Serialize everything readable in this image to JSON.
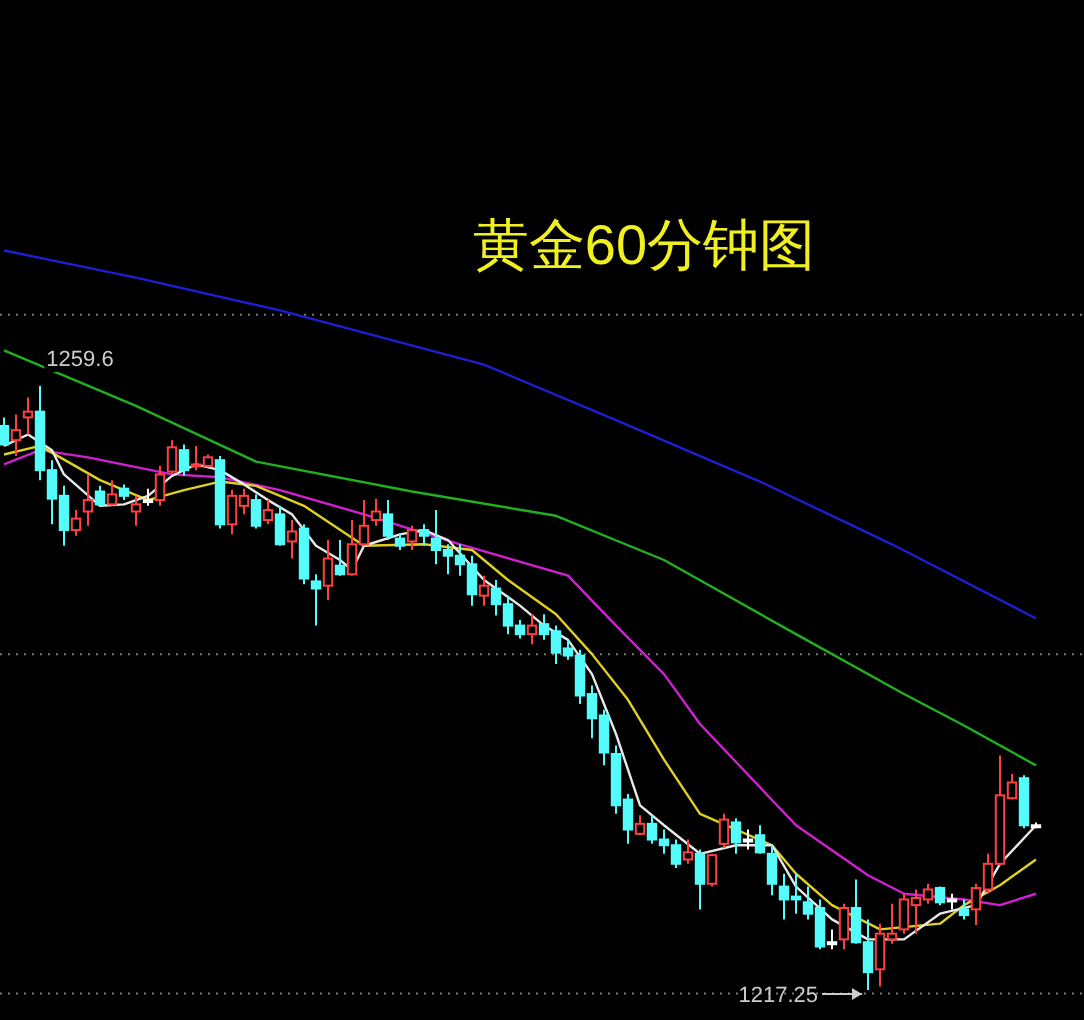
{
  "chart_data": {
    "type": "candlestick",
    "title": "黄金60分钟图",
    "categories": [
      null,
      null,
      null,
      null,
      null,
      null,
      null,
      null,
      null,
      null,
      null,
      null,
      null,
      null,
      null,
      null,
      null,
      null,
      null,
      null,
      null,
      null,
      null,
      null,
      null,
      null,
      null,
      null,
      null,
      null,
      null,
      null,
      null,
      null,
      null,
      null,
      null,
      null,
      null,
      null,
      null,
      null,
      null,
      null,
      null,
      null,
      null,
      null,
      null,
      null,
      null,
      null,
      null,
      null,
      null,
      null,
      null,
      null,
      null,
      null,
      null,
      null,
      null,
      null,
      null,
      null,
      null,
      null,
      null,
      null,
      null,
      null,
      null,
      null,
      null,
      null,
      null,
      null,
      null,
      null,
      null,
      null,
      null,
      null,
      null,
      null,
      null
    ],
    "ohlc": [
      [
        1256.8,
        1257.4,
        1255.4,
        1255.5
      ],
      [
        1255.8,
        1257.6,
        1254.7,
        1256.5
      ],
      [
        1257.4,
        1258.8,
        1256.2,
        1257.8
      ],
      [
        1257.8,
        1259.6,
        1253.0,
        1253.7
      ],
      [
        1253.7,
        1254.4,
        1249.9,
        1251.7
      ],
      [
        1251.9,
        1252.6,
        1248.4,
        1249.5
      ],
      [
        1249.5,
        1250.9,
        1249.1,
        1250.3
      ],
      [
        1250.8,
        1253.4,
        1249.8,
        1251.6
      ],
      [
        1252.2,
        1252.6,
        1251.2,
        1251.3
      ],
      [
        1251.3,
        1253.0,
        1251.2,
        1252.0
      ],
      [
        1252.4,
        1252.7,
        1251.6,
        1251.9
      ],
      [
        1250.8,
        1251.9,
        1249.8,
        1251.3
      ],
      [
        1251.6,
        1252.4,
        1251.2,
        1251.6
      ],
      [
        1251.6,
        1254.0,
        1251.2,
        1253.4
      ],
      [
        1253.6,
        1255.8,
        1253.4,
        1255.3
      ],
      [
        1255.1,
        1255.5,
        1253.3,
        1253.7
      ],
      [
        1254.0,
        1255.4,
        1253.7,
        1254.1
      ],
      [
        1254.0,
        1254.8,
        1253.9,
        1254.6
      ],
      [
        1254.4,
        1254.7,
        1249.6,
        1249.9
      ],
      [
        1249.9,
        1252.3,
        1249.2,
        1251.9
      ],
      [
        1251.2,
        1252.4,
        1250.6,
        1251.9
      ],
      [
        1251.6,
        1252.0,
        1249.6,
        1249.8
      ],
      [
        1250.2,
        1251.6,
        1249.9,
        1250.9
      ],
      [
        1250.6,
        1251.2,
        1248.4,
        1248.5
      ],
      [
        1248.7,
        1250.2,
        1247.5,
        1249.4
      ],
      [
        1249.6,
        1249.9,
        1245.7,
        1246.1
      ],
      [
        1245.9,
        1246.4,
        1242.8,
        1245.4
      ],
      [
        1245.6,
        1248.8,
        1244.6,
        1247.5
      ],
      [
        1247.0,
        1248.8,
        1246.3,
        1246.4
      ],
      [
        1246.4,
        1250.2,
        1246.3,
        1248.5
      ],
      [
        1248.5,
        1251.6,
        1248.4,
        1249.8
      ],
      [
        1250.2,
        1251.7,
        1249.8,
        1250.8
      ],
      [
        1250.6,
        1251.6,
        1248.8,
        1249.1
      ],
      [
        1248.9,
        1249.2,
        1248.1,
        1248.4
      ],
      [
        1248.7,
        1249.8,
        1248.1,
        1249.5
      ],
      [
        1249.5,
        1249.9,
        1248.4,
        1249.1
      ],
      [
        1248.9,
        1250.9,
        1247.1,
        1248.1
      ],
      [
        1248.1,
        1248.5,
        1246.4,
        1247.7
      ],
      [
        1247.7,
        1248.5,
        1246.3,
        1247.1
      ],
      [
        1247.1,
        1247.7,
        1244.2,
        1245.0
      ],
      [
        1244.9,
        1246.3,
        1244.2,
        1245.6
      ],
      [
        1245.4,
        1246.0,
        1243.5,
        1244.3
      ],
      [
        1244.3,
        1244.9,
        1242.2,
        1242.8
      ],
      [
        1242.8,
        1243.2,
        1241.9,
        1242.2
      ],
      [
        1242.2,
        1243.6,
        1241.5,
        1242.8
      ],
      [
        1242.9,
        1243.6,
        1241.8,
        1242.2
      ],
      [
        1242.4,
        1242.8,
        1240.1,
        1240.9
      ],
      [
        1241.2,
        1241.8,
        1240.4,
        1240.7
      ],
      [
        1240.7,
        1241.1,
        1237.3,
        1237.9
      ],
      [
        1238.0,
        1238.6,
        1234.9,
        1236.3
      ],
      [
        1236.5,
        1236.9,
        1233.0,
        1233.9
      ],
      [
        1233.8,
        1234.4,
        1229.6,
        1230.2
      ],
      [
        1230.6,
        1231.0,
        1227.5,
        1228.5
      ],
      [
        1228.2,
        1229.5,
        1228.1,
        1228.9
      ],
      [
        1228.9,
        1229.5,
        1227.5,
        1227.8
      ],
      [
        1227.8,
        1228.5,
        1226.8,
        1227.4
      ],
      [
        1227.4,
        1227.8,
        1225.8,
        1226.1
      ],
      [
        1226.4,
        1227.8,
        1226.1,
        1226.9
      ],
      [
        1226.8,
        1227.1,
        1222.9,
        1224.7
      ],
      [
        1224.7,
        1226.8,
        1224.5,
        1226.7
      ],
      [
        1227.5,
        1229.6,
        1227.2,
        1229.2
      ],
      [
        1229.0,
        1229.3,
        1226.8,
        1227.6
      ],
      [
        1227.8,
        1228.5,
        1227.1,
        1227.8
      ],
      [
        1228.1,
        1228.8,
        1226.8,
        1226.9
      ],
      [
        1226.8,
        1227.4,
        1223.9,
        1224.7
      ],
      [
        1224.5,
        1225.4,
        1222.2,
        1223.6
      ],
      [
        1223.8,
        1225.4,
        1222.6,
        1223.6
      ],
      [
        1223.4,
        1224.5,
        1222.2,
        1222.6
      ],
      [
        1223.0,
        1223.6,
        1220.1,
        1220.3
      ],
      [
        1220.6,
        1221.5,
        1220.1,
        1220.6
      ],
      [
        1220.8,
        1223.3,
        1220.1,
        1223.0
      ],
      [
        1223.0,
        1225.0,
        1220.5,
        1220.6
      ],
      [
        1220.6,
        1222.2,
        1217.25,
        1218.5
      ],
      [
        1218.7,
        1221.9,
        1217.5,
        1221.2
      ],
      [
        1220.8,
        1223.3,
        1220.5,
        1221.2
      ],
      [
        1221.5,
        1224.0,
        1221.2,
        1223.6
      ],
      [
        1223.2,
        1224.3,
        1221.2,
        1223.7
      ],
      [
        1223.6,
        1224.7,
        1223.3,
        1224.3
      ],
      [
        1224.4,
        1224.5,
        1223.2,
        1223.4
      ],
      [
        1223.6,
        1224.0,
        1222.9,
        1223.6
      ],
      [
        1222.9,
        1223.6,
        1222.2,
        1222.5
      ],
      [
        1222.9,
        1224.7,
        1221.8,
        1224.4
      ],
      [
        1224.3,
        1226.8,
        1224.0,
        1226.1
      ],
      [
        1226.1,
        1233.7,
        1226.0,
        1230.9
      ],
      [
        1230.7,
        1232.4,
        1230.6,
        1231.8
      ],
      [
        1232.1,
        1232.3,
        1228.6,
        1228.8
      ],
      [
        1228.8,
        1229.0,
        1228.6,
        1228.8
      ]
    ],
    "series": [
      {
        "type": "line",
        "color": "#1e1ed2",
        "values": [
          1269.1,
          null,
          null,
          null,
          null,
          null,
          null,
          null,
          null,
          null,
          null,
          1267.2,
          null,
          null,
          null,
          null,
          null,
          null,
          null,
          null,
          null,
          null,
          null,
          1264.9,
          null,
          null,
          null,
          null,
          null,
          null,
          null,
          null,
          null,
          null,
          null,
          null,
          null,
          null,
          null,
          null,
          1261.1,
          null,
          null,
          null,
          null,
          null,
          null,
          null,
          null,
          null,
          null,
          1257.2,
          null,
          null,
          null,
          null,
          null,
          null,
          null,
          null,
          null,
          null,
          null,
          1252.9,
          null,
          null,
          null,
          null,
          null,
          null,
          null,
          null,
          null,
          null,
          1248.5,
          null,
          null,
          null,
          null,
          null,
          null,
          null,
          null,
          null,
          null,
          null,
          1243.3
        ]
      },
      {
        "type": "line",
        "color": "#20b020",
        "values": [
          1262.1,
          null,
          null,
          null,
          null,
          null,
          null,
          null,
          null,
          null,
          null,
          1258.2,
          null,
          null,
          null,
          null,
          null,
          null,
          null,
          null,
          null,
          1254.3,
          null,
          null,
          null,
          null,
          null,
          null,
          null,
          null,
          null,
          null,
          null,
          null,
          1252.2,
          null,
          null,
          null,
          null,
          null,
          null,
          null,
          null,
          null,
          null,
          null,
          1250.5,
          null,
          null,
          null,
          null,
          null,
          null,
          null,
          null,
          1247.4,
          null,
          null,
          null,
          null,
          null,
          null,
          null,
          null,
          null,
          null,
          1242.2,
          null,
          null,
          null,
          null,
          null,
          null,
          null,
          null,
          1238.0,
          null,
          null,
          null,
          null,
          1235.8,
          null,
          null,
          null,
          null,
          null,
          1233.0
        ]
      },
      {
        "type": "line",
        "color": "#d020d0",
        "values": [
          1254.1,
          null,
          null,
          1255.1,
          null,
          null,
          null,
          1254.6,
          null,
          null,
          null,
          null,
          null,
          null,
          1253.4,
          null,
          null,
          null,
          1253.2,
          null,
          null,
          null,
          null,
          1252.3,
          null,
          null,
          null,
          null,
          null,
          null,
          1250.6,
          null,
          null,
          null,
          null,
          null,
          null,
          null,
          1248.5,
          null,
          null,
          null,
          null,
          null,
          null,
          null,
          null,
          1246.3,
          null,
          null,
          null,
          1242.8,
          null,
          null,
          null,
          1239.4,
          null,
          null,
          1235.9,
          null,
          null,
          null,
          null,
          null,
          null,
          null,
          1228.8,
          null,
          null,
          null,
          null,
          null,
          1225.3,
          null,
          null,
          1224.0,
          null,
          null,
          null,
          null,
          1223.6,
          null,
          null,
          1223.2,
          null,
          null,
          1224.0
        ]
      },
      {
        "type": "line",
        "color": "#e0d020",
        "values": [
          1254.8,
          null,
          null,
          1255.4,
          null,
          null,
          null,
          null,
          1253.0,
          null,
          null,
          null,
          1251.6,
          null,
          null,
          1252.3,
          null,
          null,
          1252.9,
          null,
          null,
          1252.6,
          null,
          null,
          null,
          1251.2,
          null,
          null,
          null,
          null,
          1248.4,
          null,
          null,
          null,
          null,
          1248.5,
          null,
          null,
          null,
          1248.1,
          null,
          null,
          1246.0,
          null,
          null,
          null,
          1243.6,
          null,
          null,
          1240.8,
          null,
          null,
          1237.6,
          null,
          null,
          1233.4,
          null,
          null,
          1229.6,
          null,
          null,
          null,
          null,
          null,
          1227.4,
          null,
          1225.4,
          null,
          null,
          1223.2,
          null,
          null,
          null,
          1221.5,
          null,
          null,
          null,
          null,
          1221.9,
          null,
          1223.2,
          null,
          null,
          1224.6,
          null,
          null,
          1226.4
        ]
      },
      {
        "type": "line",
        "color": "#e8e8e8",
        "values": [
          1255.4,
          null,
          1256.2,
          null,
          1255.1,
          1253.4,
          null,
          null,
          1251.2,
          null,
          1251.3,
          null,
          1251.9,
          null,
          1253.3,
          null,
          1254.1,
          null,
          1253.7,
          null,
          1252.7,
          null,
          1251.6,
          null,
          1250.6,
          null,
          1248.4,
          null,
          1247.4,
          1246.7,
          1248.4,
          null,
          null,
          1249.2,
          null,
          1249.5,
          null,
          1248.8,
          null,
          null,
          1246.0,
          null,
          null,
          1244.2,
          null,
          1242.8,
          null,
          1241.8,
          null,
          1239.4,
          null,
          1235.2,
          null,
          1230.2,
          null,
          1228.8,
          null,
          null,
          1226.8,
          null,
          null,
          1227.4,
          null,
          null,
          1227.4,
          null,
          1224.5,
          null,
          null,
          1222.2,
          null,
          null,
          1220.8,
          null,
          null,
          1220.8,
          null,
          null,
          1222.6,
          null,
          null,
          1223.2,
          null,
          1226.1,
          null,
          null,
          1228.8
        ]
      }
    ],
    "yticks": [
      {
        "value": 1264.6,
        "label": null
      },
      {
        "value": 1240.8,
        "label": null
      },
      {
        "value": 1217.0,
        "label": null
      }
    ],
    "grid": "y",
    "tick_labels": false,
    "annotations": [
      {
        "text": "1259.6",
        "y": 1259.6
      },
      "1217.25"
    ]
  }
}
